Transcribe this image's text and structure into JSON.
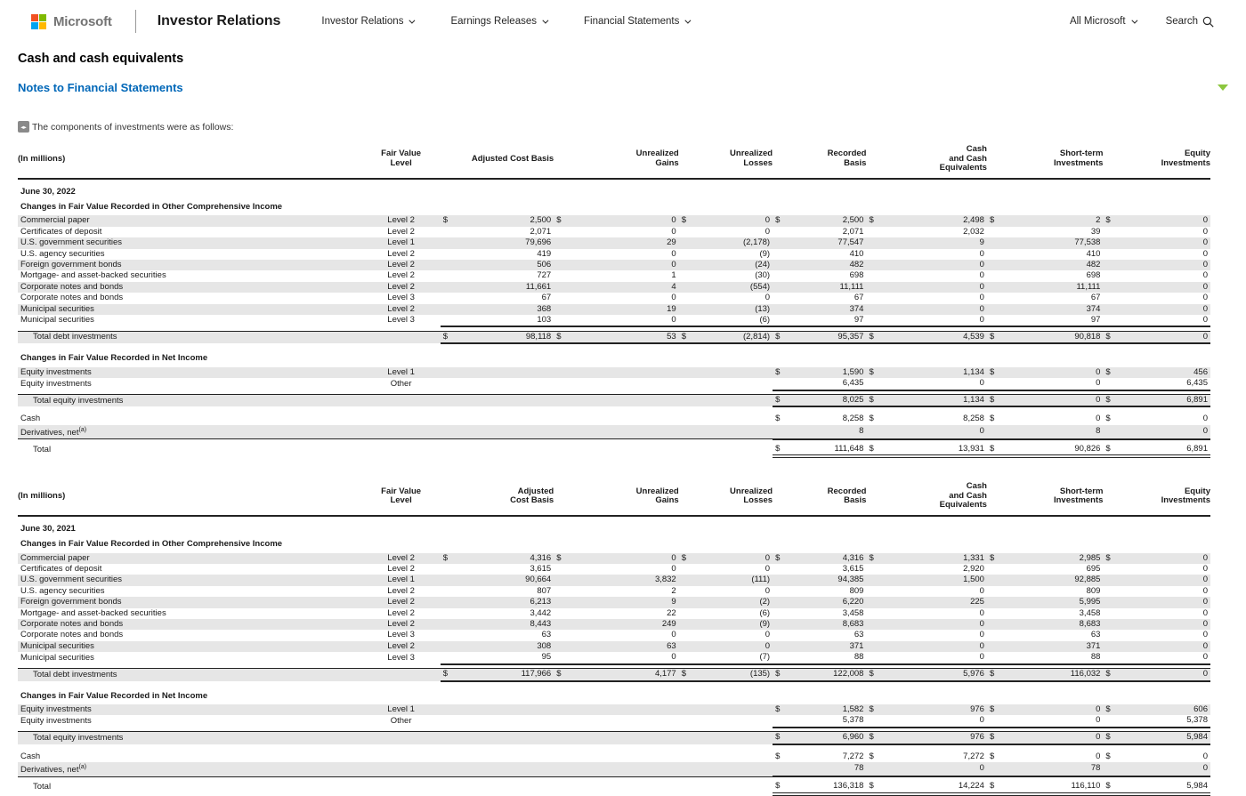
{
  "header": {
    "logo_text": "Microsoft",
    "site_title": "Investor Relations",
    "nav_items": [
      "Investor Relations",
      "Earnings Releases",
      "Financial Statements"
    ],
    "all_microsoft_label": "All Microsoft",
    "search_label": "Search"
  },
  "page": {
    "title": "Cash and cash equivalents",
    "notes_link": "Notes to Financial Statements",
    "intro_icon": "code-icon",
    "intro_text": "The components of investments were as follows:"
  },
  "colors": {
    "accent_blue": "#0067b8",
    "row_stripe": "#e6e6e6",
    "green_caret": "#8cc63e",
    "logo_red": "#f25022",
    "logo_green": "#7fba00",
    "logo_blue": "#00a4ef",
    "logo_yellow": "#ffb900"
  },
  "tables": [
    {
      "in_millions_label": "(In millions)",
      "level_header": "Fair Value\nLevel",
      "column_headers": [
        "Adjusted Cost Basis",
        "Unrealized\nGains",
        "Unrealized\nLosses",
        "Recorded\nBasis",
        "Cash\nand Cash\nEquivalents",
        "Short-term\nInvestments",
        "Equity\nInvestments"
      ],
      "date_label": "June 30, 2022",
      "sections": [
        {
          "title": "Changes in Fair Value Recorded in Other Comprehensive Income",
          "rows": [
            {
              "label": "Commercial paper",
              "level": "Level 2",
              "dollar": true,
              "values": [
                "2,500",
                "0",
                "0",
                "2,500",
                "2,498",
                "2",
                "0"
              ]
            },
            {
              "label": "Certificates of deposit",
              "level": "Level 2",
              "values": [
                "2,071",
                "0",
                "0",
                "2,071",
                "2,032",
                "39",
                "0"
              ]
            },
            {
              "label": "U.S. government securities",
              "level": "Level 1",
              "values": [
                "79,696",
                "29",
                "(2,178)",
                "77,547",
                "9",
                "77,538",
                "0"
              ]
            },
            {
              "label": "U.S. agency securities",
              "level": "Level 2",
              "values": [
                "419",
                "0",
                "(9)",
                "410",
                "0",
                "410",
                "0"
              ]
            },
            {
              "label": "Foreign government bonds",
              "level": "Level 2",
              "values": [
                "506",
                "0",
                "(24)",
                "482",
                "0",
                "482",
                "0"
              ]
            },
            {
              "label": "Mortgage- and asset-backed securities",
              "level": "Level 2",
              "values": [
                "727",
                "1",
                "(30)",
                "698",
                "0",
                "698",
                "0"
              ]
            },
            {
              "label": "Corporate notes and bonds",
              "level": "Level 2",
              "values": [
                "11,661",
                "4",
                "(554)",
                "11,111",
                "0",
                "11,111",
                "0"
              ]
            },
            {
              "label": "Corporate notes and bonds",
              "level": "Level 3",
              "values": [
                "67",
                "0",
                "0",
                "67",
                "0",
                "67",
                "0"
              ]
            },
            {
              "label": "Municipal securities",
              "level": "Level 2",
              "values": [
                "368",
                "19",
                "(13)",
                "374",
                "0",
                "374",
                "0"
              ]
            },
            {
              "label": "Municipal securities",
              "level": "Level 3",
              "values": [
                "103",
                "0",
                "(6)",
                "97",
                "0",
                "97",
                "0"
              ]
            }
          ],
          "total": {
            "label": "Total debt investments",
            "dollar": true,
            "values": [
              "98,118",
              "53",
              "(2,814)",
              "95,357",
              "4,539",
              "90,818",
              "0"
            ]
          }
        },
        {
          "title": "Changes in Fair Value Recorded in Net Income",
          "rows": [
            {
              "label": "Equity investments",
              "level": "Level 1",
              "dollar": true,
              "values": [
                "",
                "",
                "",
                "1,590",
                "1,134",
                "0",
                "456"
              ]
            },
            {
              "label": "Equity investments",
              "level": "Other",
              "values": [
                "",
                "",
                "",
                "6,435",
                "0",
                "0",
                "6,435"
              ]
            }
          ],
          "total": {
            "label": "Total equity investments",
            "dollar": true,
            "values": [
              "",
              "",
              "",
              "8,025",
              "1,134",
              "0",
              "6,891"
            ]
          }
        }
      ],
      "cash_rows": [
        {
          "label": "Cash",
          "dollar": true,
          "shade": false,
          "values": [
            "",
            "",
            "",
            "8,258",
            "8,258",
            "0",
            "0"
          ]
        },
        {
          "label": "Derivatives, net",
          "sup": "(a)",
          "shade": true,
          "seg": true,
          "values": [
            "",
            "",
            "",
            "8",
            "0",
            "8",
            "0"
          ]
        }
      ],
      "grand_total": {
        "label": "Total",
        "dollar": true,
        "values": [
          "",
          "",
          "",
          "111,648",
          "13,931",
          "90,826",
          "6,891"
        ]
      }
    },
    {
      "in_millions_label": "(In millions)",
      "level_header": "Fair Value\nLevel",
      "column_headers": [
        "Adjusted\nCost Basis",
        "Unrealized\nGains",
        "Unrealized\nLosses",
        "Recorded\nBasis",
        "Cash\nand Cash\nEquivalents",
        "Short-term\nInvestments",
        "Equity\nInvestments"
      ],
      "date_label": "June 30, 2021",
      "sections": [
        {
          "title": "Changes in Fair Value Recorded in Other Comprehensive Income",
          "rows": [
            {
              "label": "Commercial paper",
              "level": "Level 2",
              "dollar": true,
              "values": [
                "4,316",
                "0",
                "0",
                "4,316",
                "1,331",
                "2,985",
                "0"
              ]
            },
            {
              "label": "Certificates of deposit",
              "level": "Level 2",
              "values": [
                "3,615",
                "0",
                "0",
                "3,615",
                "2,920",
                "695",
                "0"
              ]
            },
            {
              "label": "U.S. government securities",
              "level": "Level 1",
              "values": [
                "90,664",
                "3,832",
                "(111)",
                "94,385",
                "1,500",
                "92,885",
                "0"
              ]
            },
            {
              "label": "U.S. agency securities",
              "level": "Level 2",
              "values": [
                "807",
                "2",
                "0",
                "809",
                "0",
                "809",
                "0"
              ]
            },
            {
              "label": "Foreign government bonds",
              "level": "Level 2",
              "values": [
                "6,213",
                "9",
                "(2)",
                "6,220",
                "225",
                "5,995",
                "0"
              ]
            },
            {
              "label": "Mortgage- and asset-backed securities",
              "level": "Level 2",
              "values": [
                "3,442",
                "22",
                "(6)",
                "3,458",
                "0",
                "3,458",
                "0"
              ]
            },
            {
              "label": "Corporate notes and bonds",
              "level": "Level 2",
              "values": [
                "8,443",
                "249",
                "(9)",
                "8,683",
                "0",
                "8,683",
                "0"
              ]
            },
            {
              "label": "Corporate notes and bonds",
              "level": "Level 3",
              "values": [
                "63",
                "0",
                "0",
                "63",
                "0",
                "63",
                "0"
              ]
            },
            {
              "label": "Municipal securities",
              "level": "Level 2",
              "values": [
                "308",
                "63",
                "0",
                "371",
                "0",
                "371",
                "0"
              ]
            },
            {
              "label": "Municipal securities",
              "level": "Level 3",
              "values": [
                "95",
                "0",
                "(7)",
                "88",
                "0",
                "88",
                "0"
              ]
            }
          ],
          "total": {
            "label": "Total debt investments",
            "dollar": true,
            "values": [
              "117,966",
              "4,177",
              "(135)",
              "122,008",
              "5,976",
              "116,032",
              "0"
            ]
          }
        },
        {
          "title": "Changes in Fair Value Recorded in Net Income",
          "rows": [
            {
              "label": "Equity investments",
              "level": "Level 1",
              "dollar": true,
              "values": [
                "",
                "",
                "",
                "1,582",
                "976",
                "0",
                "606"
              ]
            },
            {
              "label": "Equity investments",
              "level": "Other",
              "values": [
                "",
                "",
                "",
                "5,378",
                "0",
                "0",
                "5,378"
              ]
            }
          ],
          "total": {
            "label": "Total equity investments",
            "dollar": true,
            "values": [
              "",
              "",
              "",
              "6,960",
              "976",
              "0",
              "5,984"
            ]
          }
        }
      ],
      "cash_rows": [
        {
          "label": "Cash",
          "dollar": true,
          "shade": false,
          "values": [
            "",
            "",
            "",
            "7,272",
            "7,272",
            "0",
            "0"
          ]
        },
        {
          "label": "Derivatives, net",
          "sup": "(a)",
          "shade": true,
          "seg": true,
          "values": [
            "",
            "",
            "",
            "78",
            "0",
            "78",
            "0"
          ]
        }
      ],
      "grand_total": {
        "label": "Total",
        "dollar": true,
        "values": [
          "",
          "",
          "",
          "136,318",
          "14,224",
          "116,110",
          "5,984"
        ]
      }
    }
  ]
}
